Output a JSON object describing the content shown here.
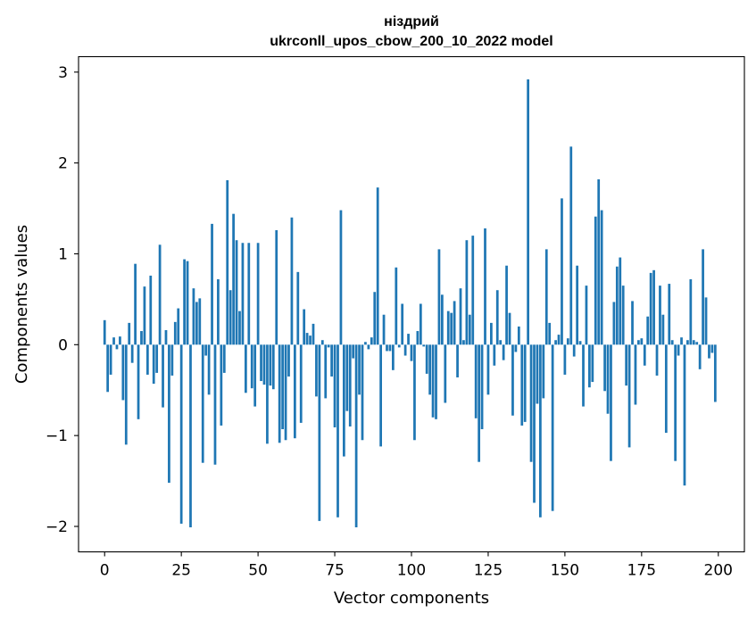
{
  "chart_data": {
    "type": "bar",
    "title": "ніздрий",
    "subtitle": "ukrconll_upos_cbow_200_10_2022 model",
    "xlabel": "Vector components",
    "ylabel": "Components values",
    "xlim": [
      -8.5,
      208.5
    ],
    "ylim": [
      -2.28,
      3.17
    ],
    "xticks": [
      0,
      25,
      50,
      75,
      100,
      125,
      150,
      175,
      200
    ],
    "xtick_labels": [
      "0",
      "25",
      "50",
      "75",
      "100",
      "125",
      "150",
      "175",
      "200"
    ],
    "yticks": [
      -2,
      -1,
      0,
      1,
      2,
      3
    ],
    "ytick_labels": [
      "−2",
      "−1",
      "0",
      "1",
      "2",
      "3"
    ],
    "bar_color": "#1f77b4",
    "grid": false,
    "values": [
      0.27,
      -0.52,
      -0.33,
      0.08,
      -0.05,
      0.09,
      -0.61,
      -1.1,
      0.24,
      -0.2,
      0.89,
      -0.82,
      0.15,
      0.64,
      -0.33,
      0.76,
      -0.43,
      -0.31,
      1.1,
      -0.69,
      0.16,
      -1.52,
      -0.34,
      0.25,
      0.4,
      -1.97,
      0.94,
      0.92,
      -2.01,
      0.62,
      0.47,
      0.51,
      -1.3,
      -0.12,
      -0.55,
      1.33,
      -1.32,
      0.72,
      -0.89,
      -0.31,
      1.81,
      0.6,
      1.44,
      1.15,
      0.37,
      1.12,
      -0.53,
      1.12,
      -0.48,
      -0.68,
      1.12,
      -0.4,
      -0.44,
      -1.09,
      -0.45,
      -0.49,
      1.26,
      -1.08,
      -0.93,
      -1.05,
      -0.35,
      1.4,
      -1.03,
      0.8,
      -0.86,
      0.39,
      0.13,
      0.1,
      0.23,
      -0.57,
      -1.94,
      0.05,
      -0.59,
      -0.03,
      -0.35,
      -0.91,
      -1.9,
      1.48,
      -1.23,
      -0.73,
      -0.9,
      -0.15,
      -2.01,
      -0.55,
      -1.05,
      0.03,
      -0.05,
      0.08,
      0.58,
      1.73,
      -1.12,
      0.33,
      -0.07,
      -0.07,
      -0.28,
      0.85,
      -0.03,
      0.45,
      -0.12,
      0.12,
      -0.18,
      -1.05,
      0.15,
      0.45,
      -0.02,
      -0.32,
      -0.55,
      -0.8,
      -0.82,
      1.05,
      0.55,
      -0.64,
      0.37,
      0.35,
      0.48,
      -0.36,
      0.62,
      0.05,
      1.15,
      0.33,
      1.2,
      -0.81,
      -1.29,
      -0.93,
      1.28,
      -0.55,
      0.24,
      -0.23,
      0.6,
      0.05,
      -0.17,
      0.87,
      0.35,
      -0.78,
      -0.08,
      0.2,
      -0.89,
      -0.85,
      2.92,
      -1.29,
      -1.74,
      -0.65,
      -1.9,
      -0.59,
      1.05,
      0.24,
      -1.83,
      0.05,
      0.11,
      1.61,
      -0.33,
      0.07,
      2.18,
      -0.13,
      0.87,
      0.04,
      -0.68,
      0.65,
      -0.47,
      -0.41,
      1.41,
      1.82,
      1.48,
      -0.51,
      -0.76,
      -1.28,
      0.47,
      0.86,
      0.96,
      0.65,
      -0.45,
      -1.13,
      0.48,
      -0.66,
      0.05,
      0.07,
      -0.23,
      0.31,
      0.79,
      0.82,
      -0.34,
      0.65,
      0.33,
      -0.97,
      0.67,
      0.05,
      -1.28,
      -0.12,
      0.08,
      -1.55,
      0.05,
      0.72,
      0.05,
      0.03,
      -0.27,
      1.05,
      0.52,
      -0.15,
      -0.09,
      -0.63
    ]
  }
}
